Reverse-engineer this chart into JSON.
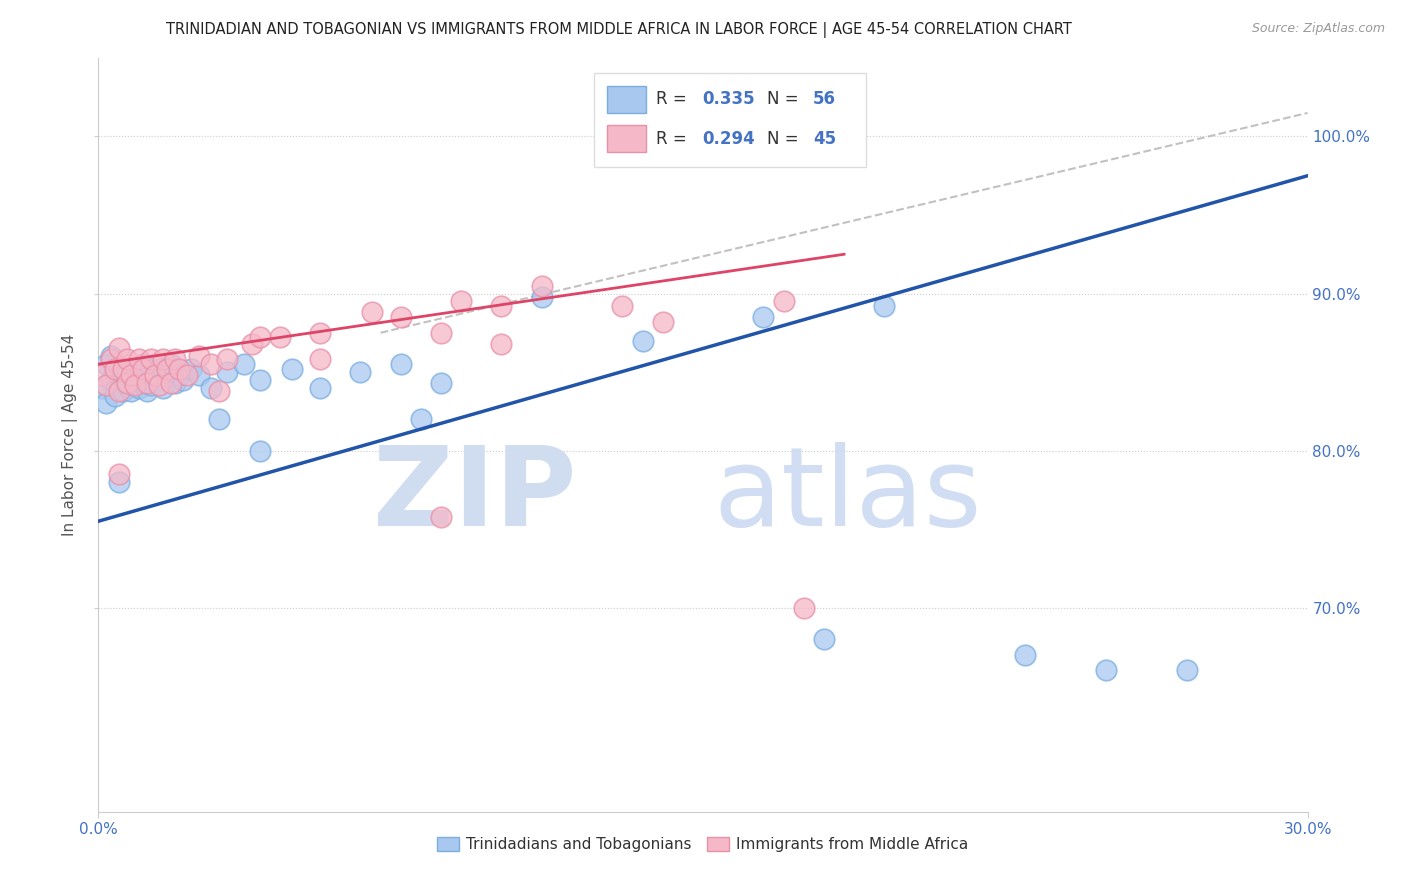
{
  "title": "TRINIDADIAN AND TOBAGONIAN VS IMMIGRANTS FROM MIDDLE AFRICA IN LABOR FORCE | AGE 45-54 CORRELATION CHART",
  "source": "Source: ZipAtlas.com",
  "ylabel": "In Labor Force | Age 45-54",
  "xlim": [
    0.0,
    0.3
  ],
  "ylim": [
    0.57,
    1.05
  ],
  "xtick_vals": [
    0.0,
    0.3
  ],
  "xtick_labels": [
    "0.0%",
    "30.0%"
  ],
  "ytick_vals": [
    0.7,
    0.8,
    0.9,
    1.0
  ],
  "ytick_labels": [
    "70.0%",
    "80.0%",
    "90.0%",
    "100.0%"
  ],
  "blue_color": "#A8C8F0",
  "blue_edge_color": "#7AAEE0",
  "pink_color": "#F5B8C8",
  "pink_edge_color": "#E890A8",
  "blue_line_color": "#2255AA",
  "pink_line_color": "#DD4466",
  "gray_dash_color": "#BBBBBB",
  "text_color_blue": "#4472C4",
  "text_color_dark": "#333333",
  "legend_label_blue": "Trinidadians and Tobagonians",
  "legend_label_pink": "Immigrants from Middle Africa",
  "watermark_zip_color": "#D8E4F0",
  "watermark_atlas_color": "#C5D8EE",
  "blue_line_x0": 0.0,
  "blue_line_y0": 0.755,
  "blue_line_x1": 0.3,
  "blue_line_y1": 0.975,
  "pink_line_x0": 0.0,
  "pink_line_y0": 0.855,
  "pink_line_x1": 0.185,
  "pink_line_y1": 0.925,
  "gray_line_x0": 0.07,
  "gray_line_y0": 0.875,
  "gray_line_x1": 0.3,
  "gray_line_y1": 1.015,
  "blue_pts_x": [
    0.001,
    0.002,
    0.002,
    0.003,
    0.003,
    0.004,
    0.004,
    0.005,
    0.005,
    0.006,
    0.006,
    0.007,
    0.007,
    0.008,
    0.008,
    0.009,
    0.009,
    0.01,
    0.01,
    0.011,
    0.011,
    0.012,
    0.012,
    0.013,
    0.013,
    0.014,
    0.015,
    0.016,
    0.017,
    0.018,
    0.019,
    0.02,
    0.021,
    0.023,
    0.025,
    0.028,
    0.032,
    0.036,
    0.04,
    0.048,
    0.055,
    0.065,
    0.075,
    0.085,
    0.11,
    0.135,
    0.165,
    0.195,
    0.005,
    0.03,
    0.04,
    0.08,
    0.18,
    0.23,
    0.25,
    0.27
  ],
  "blue_pts_y": [
    0.84,
    0.855,
    0.83,
    0.86,
    0.845,
    0.85,
    0.835,
    0.848,
    0.852,
    0.845,
    0.838,
    0.852,
    0.842,
    0.848,
    0.838,
    0.845,
    0.852,
    0.84,
    0.85,
    0.855,
    0.843,
    0.848,
    0.838,
    0.852,
    0.842,
    0.848,
    0.852,
    0.84,
    0.85,
    0.855,
    0.843,
    0.848,
    0.845,
    0.852,
    0.848,
    0.84,
    0.85,
    0.855,
    0.845,
    0.852,
    0.84,
    0.85,
    0.855,
    0.843,
    0.898,
    0.87,
    0.885,
    0.892,
    0.78,
    0.82,
    0.8,
    0.82,
    0.68,
    0.67,
    0.66,
    0.66
  ],
  "pink_pts_x": [
    0.001,
    0.002,
    0.003,
    0.004,
    0.005,
    0.005,
    0.006,
    0.007,
    0.007,
    0.008,
    0.009,
    0.01,
    0.011,
    0.012,
    0.013,
    0.014,
    0.015,
    0.016,
    0.017,
    0.018,
    0.019,
    0.02,
    0.022,
    0.025,
    0.028,
    0.032,
    0.038,
    0.045,
    0.055,
    0.068,
    0.09,
    0.11,
    0.13,
    0.04,
    0.075,
    0.1,
    0.005,
    0.03,
    0.055,
    0.085,
    0.1,
    0.14,
    0.17,
    0.085,
    0.175
  ],
  "pink_pts_y": [
    0.848,
    0.842,
    0.858,
    0.852,
    0.838,
    0.865,
    0.852,
    0.843,
    0.858,
    0.848,
    0.842,
    0.858,
    0.852,
    0.843,
    0.858,
    0.848,
    0.842,
    0.858,
    0.852,
    0.843,
    0.858,
    0.852,
    0.848,
    0.86,
    0.855,
    0.858,
    0.868,
    0.872,
    0.875,
    0.888,
    0.895,
    0.905,
    0.892,
    0.872,
    0.885,
    0.892,
    0.785,
    0.838,
    0.858,
    0.875,
    0.868,
    0.882,
    0.895,
    0.758,
    0.7
  ]
}
